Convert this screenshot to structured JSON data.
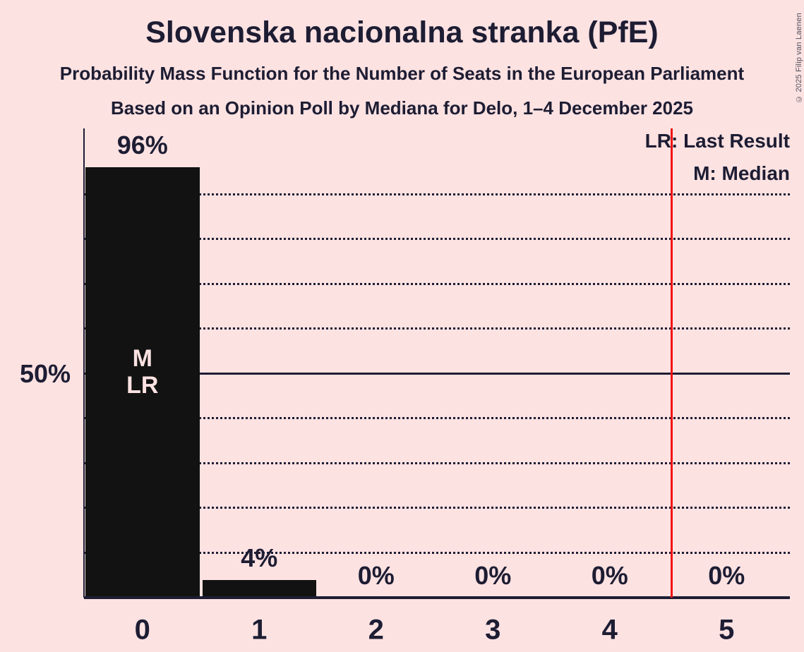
{
  "page": {
    "background_color": "#fde2e2",
    "text_color": "#1d1d33",
    "bar_color": "#121212",
    "bar_inner_label_color": "#fde2e2",
    "last_result_line_color": "#f01414"
  },
  "header": {
    "title": "Slovenska nacionalna stranka (PfE)",
    "subtitle1": "Probability Mass Function for the Number of Seats in the European Parliament",
    "subtitle2": "Based on an Opinion Poll by Mediana for Delo, 1–4 December 2025"
  },
  "legend": {
    "last_result": "LR: Last Result",
    "median": "M: Median"
  },
  "copyright": "© 2025 Filip van Laenen",
  "chart_data": {
    "type": "bar",
    "title": "Slovenska nacionalna stranka (PfE)",
    "categories": [
      "0",
      "1",
      "2",
      "3",
      "4",
      "5"
    ],
    "values": [
      96,
      4,
      0,
      0,
      0,
      0
    ],
    "value_labels": [
      "96%",
      "4%",
      "0%",
      "0%",
      "0%",
      "0%"
    ],
    "ylim": [
      0,
      100
    ],
    "y_axis_tick_label": "50%",
    "y_axis_tick_pct": 50,
    "gridlines_pct": [
      10,
      20,
      30,
      40,
      50,
      60,
      70,
      80,
      90
    ],
    "solid_gridline_pct": 50,
    "grid_style": "dotted horizontal",
    "legend_entries": [
      "LR: Last Result",
      "M: Median"
    ],
    "legend_position": "top-right",
    "median_category": "0",
    "last_result_category": "0",
    "bar_0_inner_labels": [
      "M",
      "LR"
    ],
    "last_result_line": {
      "label": "LR",
      "position": 4.5
    }
  }
}
